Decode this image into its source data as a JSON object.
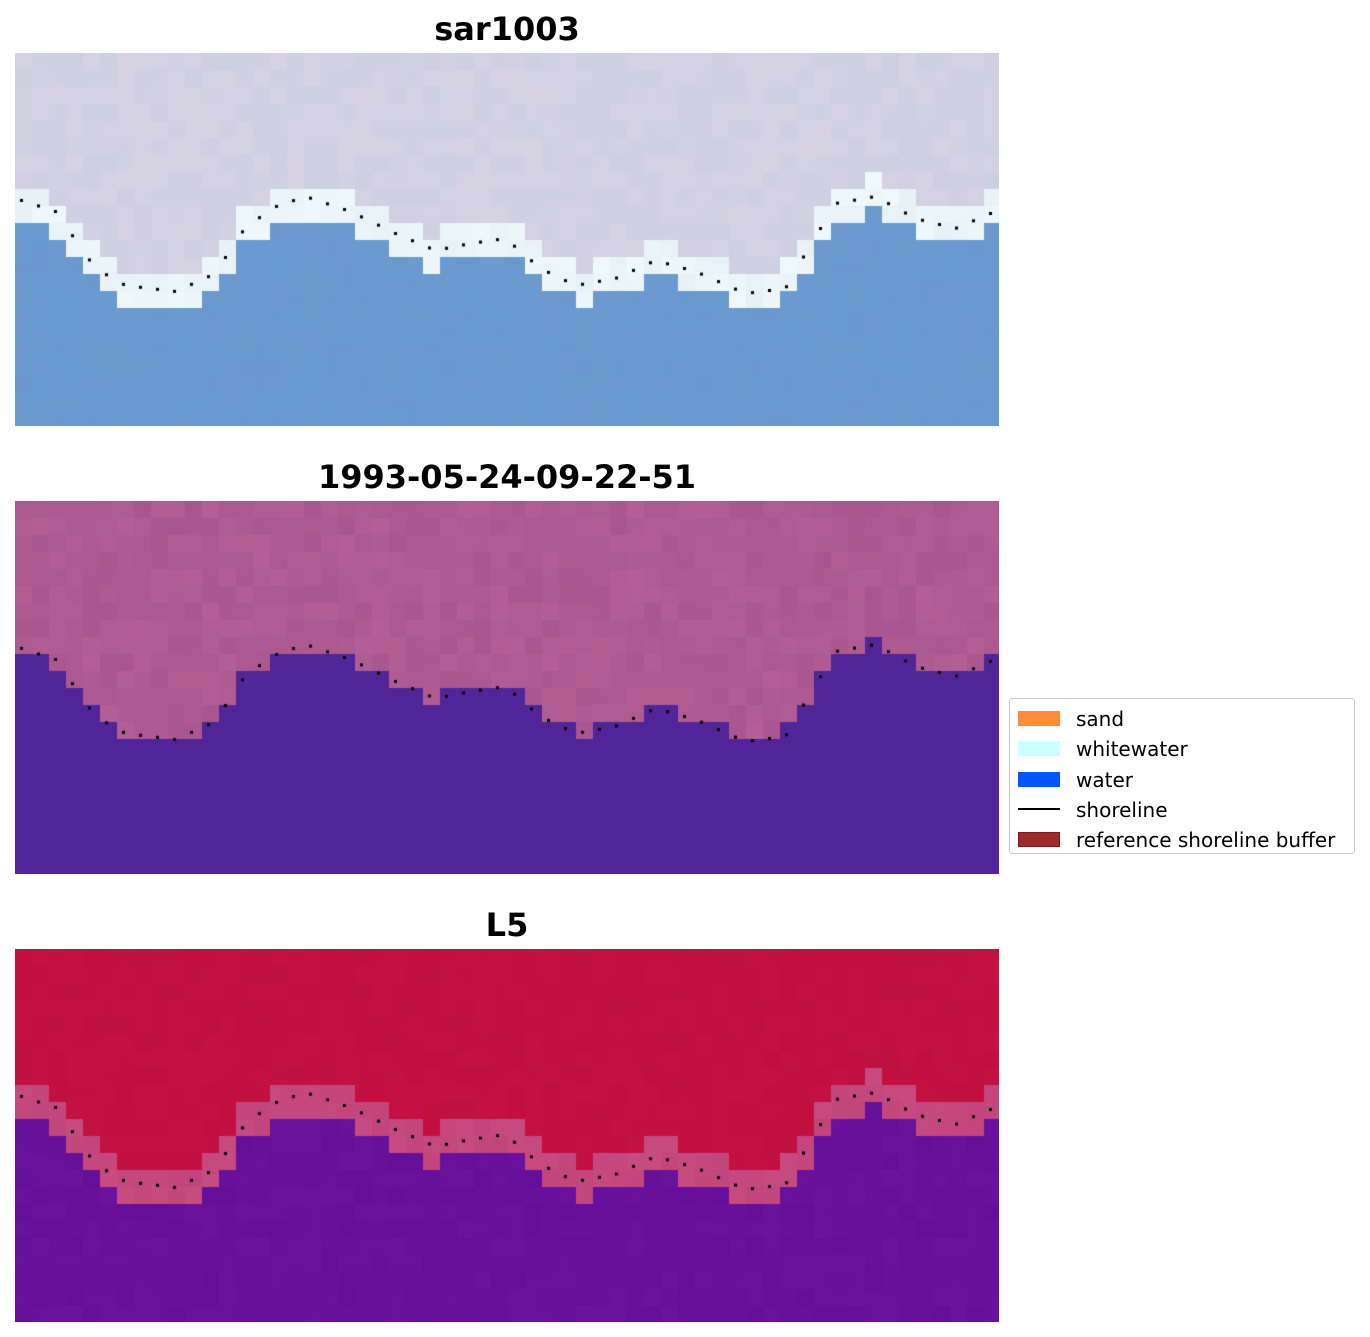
{
  "panels": [
    {
      "title": "sar1003",
      "palette": "rgb"
    },
    {
      "title": "1993-05-24-09-22-51",
      "palette": "classified"
    },
    {
      "title": "L5",
      "palette": "index"
    }
  ],
  "legend": {
    "items": [
      {
        "label": "sand",
        "kind": "patch",
        "color": "#ff8c3a",
        "edge": "#ff8c3a"
      },
      {
        "label": "whitewater",
        "kind": "patch",
        "color": "#ccffff",
        "edge": "#ccffff"
      },
      {
        "label": "water",
        "kind": "patch",
        "color": "#0055ff",
        "edge": "#0055ff"
      },
      {
        "label": "shoreline",
        "kind": "line",
        "color": "#000000",
        "edge": "#000000"
      },
      {
        "label": "reference shoreline buffer",
        "kind": "patch",
        "color": "#9e2a2b",
        "edge": "#7a1a1a"
      }
    ]
  },
  "colors": {
    "rgb_land": "#d6d2e2",
    "rgb_water": "#6a9bd0",
    "rgb_whitewater": "#eff8fa",
    "class_land": "#b35f96",
    "class_water": "#512498",
    "index_land": "#c01040",
    "index_mid": "#c64c80",
    "index_water": "#6a129e",
    "shoreline_dots": "#000000"
  }
}
